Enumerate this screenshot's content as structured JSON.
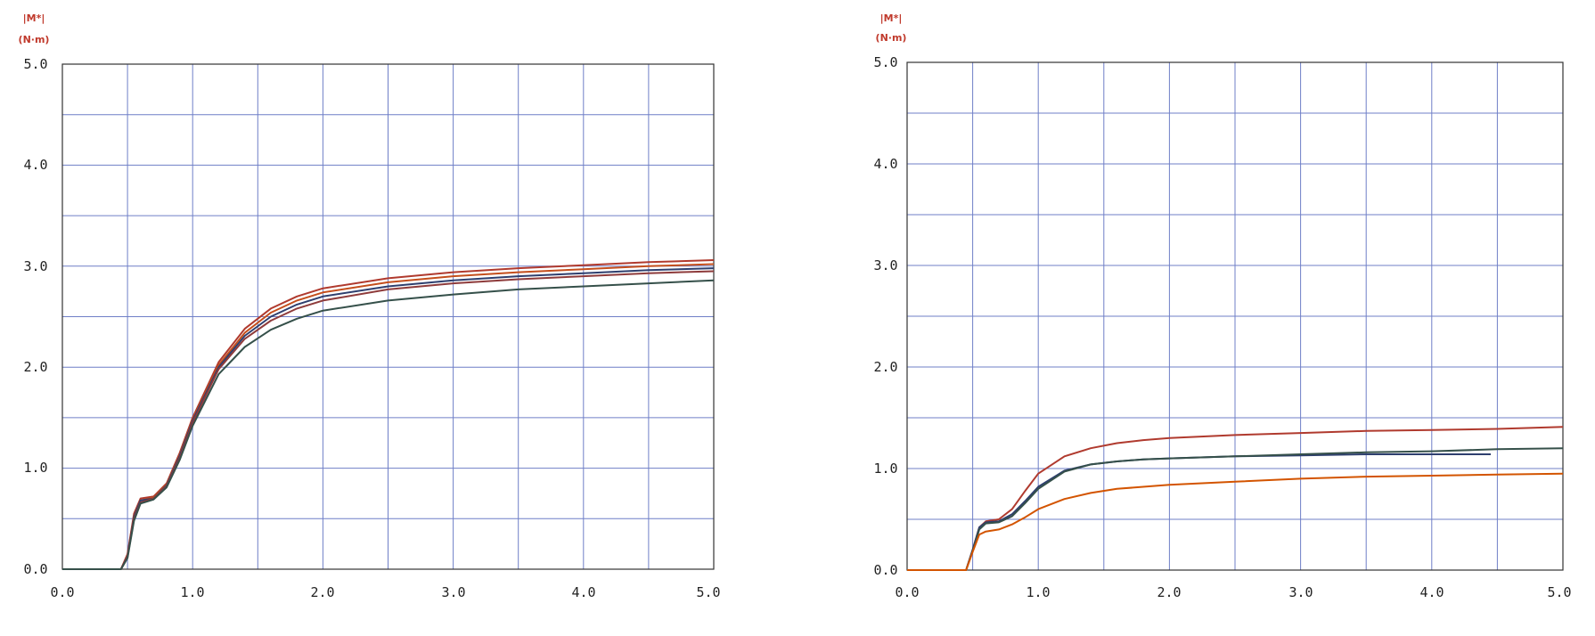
{
  "chart_data": [
    {
      "type": "line",
      "ylabel_line1": "|M*|",
      "ylabel_line2": "(N·m)",
      "xlim": [
        0,
        5
      ],
      "ylim": [
        0,
        5
      ],
      "x_ticks": [
        "0.0",
        "1.0",
        "2.0",
        "3.0",
        "4.0",
        "5.0"
      ],
      "y_ticks": [
        "0.0",
        "1.0",
        "2.0",
        "3.0",
        "4.0",
        "5.0"
      ],
      "grid": true,
      "series": [
        {
          "color": "#b03a2e",
          "x": [
            0,
            0.45,
            0.5,
            0.55,
            0.6,
            0.7,
            0.8,
            0.9,
            1.0,
            1.2,
            1.4,
            1.6,
            1.8,
            2.0,
            2.5,
            3.0,
            3.5,
            4.0,
            4.5,
            5.0
          ],
          "y": [
            0,
            0,
            0.15,
            0.55,
            0.7,
            0.72,
            0.85,
            1.15,
            1.5,
            2.05,
            2.38,
            2.58,
            2.7,
            2.78,
            2.88,
            2.94,
            2.98,
            3.01,
            3.04,
            3.06
          ]
        },
        {
          "color": "#c44e1c",
          "x": [
            0,
            0.45,
            0.5,
            0.55,
            0.6,
            0.7,
            0.8,
            0.9,
            1.0,
            1.2,
            1.4,
            1.6,
            1.8,
            2.0,
            2.5,
            3.0,
            3.5,
            4.0,
            4.5,
            5.0
          ],
          "y": [
            0,
            0,
            0.14,
            0.53,
            0.68,
            0.71,
            0.84,
            1.13,
            1.48,
            2.02,
            2.34,
            2.54,
            2.66,
            2.74,
            2.84,
            2.9,
            2.94,
            2.97,
            3.0,
            3.02
          ]
        },
        {
          "color": "#2e3f6e",
          "x": [
            0,
            0.45,
            0.5,
            0.55,
            0.6,
            0.7,
            0.8,
            0.9,
            1.0,
            1.2,
            1.4,
            1.6,
            1.8,
            2.0,
            2.5,
            3.0,
            3.5,
            4.0,
            4.5,
            5.0
          ],
          "y": [
            0,
            0,
            0.13,
            0.52,
            0.68,
            0.7,
            0.83,
            1.12,
            1.47,
            2.0,
            2.31,
            2.5,
            2.62,
            2.7,
            2.8,
            2.86,
            2.9,
            2.93,
            2.96,
            2.98
          ]
        },
        {
          "color": "#8e3b3b",
          "x": [
            0,
            0.45,
            0.5,
            0.55,
            0.6,
            0.7,
            0.8,
            0.9,
            1.0,
            1.2,
            1.4,
            1.6,
            1.8,
            2.0,
            2.5,
            3.0,
            3.5,
            4.0,
            4.5,
            5.0
          ],
          "y": [
            0,
            0,
            0.12,
            0.5,
            0.66,
            0.7,
            0.82,
            1.1,
            1.45,
            1.98,
            2.28,
            2.46,
            2.58,
            2.66,
            2.77,
            2.83,
            2.87,
            2.9,
            2.93,
            2.95
          ]
        },
        {
          "color": "#35504a",
          "x": [
            0,
            0.45,
            0.5,
            0.55,
            0.6,
            0.7,
            0.8,
            0.9,
            1.0,
            1.2,
            1.4,
            1.6,
            1.8,
            2.0,
            2.5,
            3.0,
            3.5,
            4.0,
            4.5,
            5.0
          ],
          "y": [
            0,
            0,
            0.11,
            0.48,
            0.65,
            0.69,
            0.81,
            1.08,
            1.42,
            1.93,
            2.2,
            2.37,
            2.48,
            2.56,
            2.66,
            2.72,
            2.77,
            2.8,
            2.83,
            2.86
          ]
        }
      ]
    },
    {
      "type": "line",
      "ylabel_line1": "|M*|",
      "ylabel_line2": "(N·m)",
      "xlim": [
        0,
        5
      ],
      "ylim": [
        0,
        5
      ],
      "x_ticks": [
        "0.0",
        "1.0",
        "2.0",
        "3.0",
        "4.0",
        "5.0"
      ],
      "y_ticks": [
        "0.0",
        "1.0",
        "2.0",
        "3.0",
        "4.0",
        "5.0"
      ],
      "grid": true,
      "series": [
        {
          "color": "#b03a2e",
          "x": [
            0,
            0.45,
            0.5,
            0.55,
            0.6,
            0.7,
            0.8,
            0.9,
            1.0,
            1.2,
            1.4,
            1.6,
            1.8,
            2.0,
            2.5,
            3.0,
            3.5,
            4.0,
            4.5,
            5.0
          ],
          "y": [
            0,
            0,
            0.2,
            0.42,
            0.48,
            0.5,
            0.6,
            0.78,
            0.95,
            1.12,
            1.2,
            1.25,
            1.28,
            1.3,
            1.33,
            1.35,
            1.37,
            1.38,
            1.39,
            1.41
          ]
        },
        {
          "color": "#2e3f6e",
          "x": [
            0,
            0.45,
            0.5,
            0.55,
            0.6,
            0.7,
            0.8,
            0.9,
            1.0,
            1.2,
            1.4,
            1.6,
            1.8,
            2.0,
            2.5,
            3.0,
            3.5,
            4.0,
            4.45
          ],
          "y": [
            0,
            0,
            0.2,
            0.42,
            0.47,
            0.48,
            0.55,
            0.68,
            0.82,
            0.98,
            1.04,
            1.07,
            1.09,
            1.1,
            1.12,
            1.13,
            1.14,
            1.14,
            1.14
          ]
        },
        {
          "color": "#35504a",
          "x": [
            0,
            0.45,
            0.5,
            0.55,
            0.6,
            0.7,
            0.8,
            0.9,
            1.0,
            1.2,
            1.4,
            1.6,
            1.8,
            2.0,
            2.5,
            3.0,
            3.5,
            4.0,
            4.5,
            5.0
          ],
          "y": [
            0,
            0,
            0.19,
            0.4,
            0.46,
            0.47,
            0.53,
            0.66,
            0.8,
            0.97,
            1.04,
            1.07,
            1.09,
            1.1,
            1.12,
            1.14,
            1.16,
            1.17,
            1.19,
            1.2
          ]
        },
        {
          "color": "#d35400",
          "x": [
            0,
            0.45,
            0.5,
            0.55,
            0.6,
            0.7,
            0.8,
            0.9,
            1.0,
            1.2,
            1.4,
            1.6,
            1.8,
            2.0,
            2.5,
            3.0,
            3.5,
            4.0,
            4.5,
            5.0
          ],
          "y": [
            0,
            0,
            0.18,
            0.35,
            0.38,
            0.4,
            0.45,
            0.52,
            0.6,
            0.7,
            0.76,
            0.8,
            0.82,
            0.84,
            0.87,
            0.9,
            0.92,
            0.93,
            0.94,
            0.95
          ]
        }
      ]
    }
  ]
}
